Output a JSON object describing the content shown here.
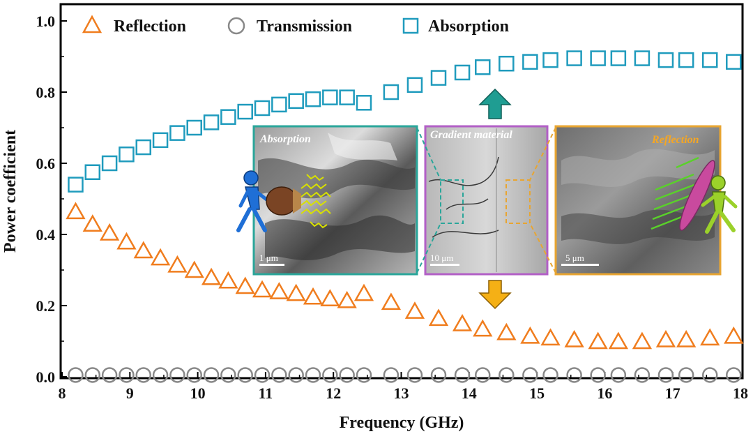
{
  "chart_data": {
    "type": "scatter",
    "title": "",
    "xlabel": "Frequency (GHz)",
    "ylabel": "Power coefficient",
    "xlim": [
      8,
      18
    ],
    "ylim": [
      0,
      1.05
    ],
    "xticks": [
      8,
      9,
      10,
      11,
      12,
      13,
      14,
      15,
      16,
      17,
      18
    ],
    "yticks": [
      0.0,
      0.2,
      0.4,
      0.6,
      0.8,
      1.0
    ],
    "xtick_labels": [
      "8",
      "9",
      "10",
      "11",
      "12",
      "13",
      "14",
      "15",
      "16",
      "17",
      "18"
    ],
    "ytick_labels": [
      "0.0",
      "0.2",
      "0.4",
      "0.6",
      "0.8",
      "1.0"
    ],
    "grid": false,
    "legend_position": "top",
    "x": [
      8.2,
      8.45,
      8.7,
      8.95,
      9.2,
      9.45,
      9.7,
      9.95,
      10.2,
      10.45,
      10.7,
      10.95,
      11.2,
      11.45,
      11.7,
      11.95,
      12.2,
      12.45,
      12.85,
      13.2,
      13.55,
      13.9,
      14.2,
      14.55,
      14.9,
      15.2,
      15.55,
      15.9,
      16.2,
      16.55,
      16.9,
      17.2,
      17.55,
      17.9
    ],
    "series": [
      {
        "name": "Reflection",
        "marker": "triangle",
        "color": "#f07d1e",
        "values": [
          0.465,
          0.43,
          0.405,
          0.38,
          0.355,
          0.335,
          0.315,
          0.3,
          0.28,
          0.27,
          0.255,
          0.245,
          0.24,
          0.235,
          0.225,
          0.22,
          0.215,
          0.235,
          0.21,
          0.185,
          0.165,
          0.15,
          0.135,
          0.125,
          0.115,
          0.11,
          0.105,
          0.1,
          0.1,
          0.1,
          0.105,
          0.105,
          0.11,
          0.115
        ]
      },
      {
        "name": "Transmission",
        "marker": "circle",
        "color": "#888888",
        "values": [
          0.005,
          0.005,
          0.005,
          0.005,
          0.005,
          0.005,
          0.005,
          0.005,
          0.005,
          0.005,
          0.005,
          0.005,
          0.005,
          0.005,
          0.005,
          0.005,
          0.005,
          0.005,
          0.005,
          0.005,
          0.005,
          0.005,
          0.005,
          0.005,
          0.005,
          0.005,
          0.005,
          0.005,
          0.005,
          0.005,
          0.005,
          0.005,
          0.005,
          0.005
        ]
      },
      {
        "name": "Absorption",
        "marker": "square",
        "color": "#1f9bbd",
        "values": [
          0.54,
          0.575,
          0.6,
          0.625,
          0.645,
          0.665,
          0.685,
          0.7,
          0.715,
          0.73,
          0.745,
          0.755,
          0.765,
          0.775,
          0.78,
          0.785,
          0.785,
          0.77,
          0.8,
          0.82,
          0.84,
          0.855,
          0.87,
          0.88,
          0.885,
          0.89,
          0.895,
          0.895,
          0.895,
          0.895,
          0.89,
          0.89,
          0.89,
          0.885
        ]
      }
    ],
    "inset": {
      "panels": [
        {
          "title": "Absorption",
          "title_color": "#ffffff",
          "border_color": "#2aa69a",
          "scale_bar": "1 μm"
        },
        {
          "title": "Gradient material",
          "title_color": "#ffffff",
          "border_color": "#b25fc6",
          "scale_bar": "10 μm"
        },
        {
          "title": "Reflection",
          "title_color": "#f5a623",
          "border_color": "#e8a531",
          "scale_bar": "5 μm"
        }
      ],
      "arrows": [
        {
          "direction": "up",
          "color": "#1f9d92"
        },
        {
          "direction": "down",
          "color": "#f5b015"
        }
      ]
    }
  }
}
